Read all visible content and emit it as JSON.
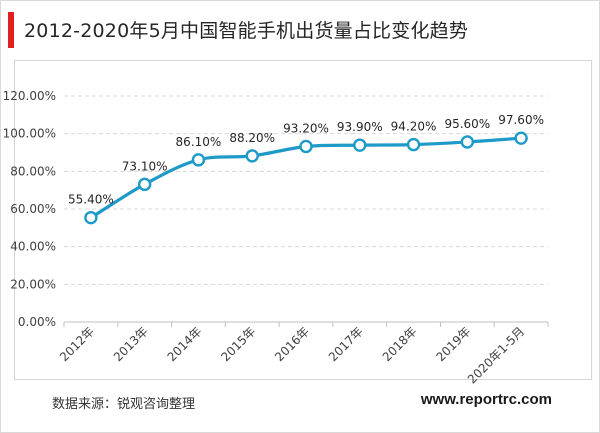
{
  "header": {
    "title": "2012-2020年5月中国智能手机出货量占比变化趋势",
    "accent_color": "#e02020"
  },
  "footer": {
    "source": "数据来源：锐观咨询整理",
    "website": "www.reportrc.com"
  },
  "chart_data": {
    "type": "line",
    "title": "",
    "xlabel": "",
    "ylabel": "",
    "categories": [
      "2012年",
      "2013年",
      "2014年",
      "2015年",
      "2016年",
      "2017年",
      "2018年",
      "2019年",
      "2020年1-5月"
    ],
    "values": [
      55.4,
      73.1,
      86.1,
      88.2,
      93.2,
      93.9,
      94.2,
      95.6,
      97.6
    ],
    "data_labels": [
      "55.40%",
      "73.10%",
      "86.10%",
      "88.20%",
      "93.20%",
      "93.90%",
      "94.20%",
      "95.60%",
      "97.60%"
    ],
    "y_ticks": [
      "0.00%",
      "20.00%",
      "40.00%",
      "60.00%",
      "80.00%",
      "100.00%",
      "120.00%"
    ],
    "ylim": [
      0,
      120
    ],
    "grid": true,
    "smooth": true,
    "line_color": "#1e9ac8",
    "legend": "none"
  }
}
